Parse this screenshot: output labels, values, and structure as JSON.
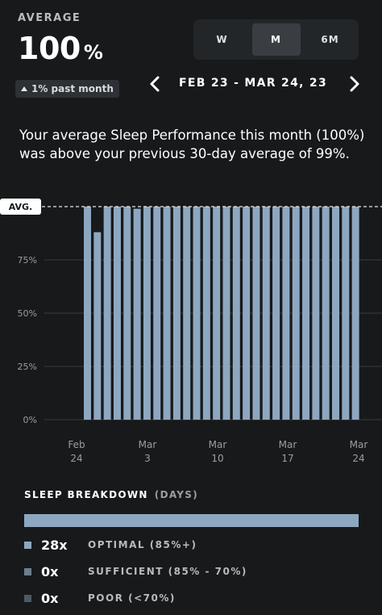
{
  "header": {
    "average_label": "AVERAGE",
    "average_value": "100",
    "average_unit": "%",
    "trend_text": "1% past month"
  },
  "range_selector": {
    "options": [
      "W",
      "M",
      "6M"
    ],
    "selected": "M"
  },
  "date_nav": {
    "range_label": "FEB 23 - MAR 24, 23",
    "prev_icon": "chevron-left-icon",
    "next_icon": "chevron-right-icon"
  },
  "summary_text": "Your average Sleep Performance this month (100%) was above your previous 30-day average of 99%.",
  "chart_data": {
    "type": "bar",
    "avg_label": "AVG.",
    "avg_value": 100,
    "ylim": [
      0,
      100
    ],
    "y_ticks": [
      "0%",
      "25%",
      "50%",
      "75%"
    ],
    "x_ticks": [
      {
        "month": "Feb",
        "day": "24"
      },
      {
        "month": "Mar",
        "day": "3"
      },
      {
        "month": "Mar",
        "day": "10"
      },
      {
        "month": "Mar",
        "day": "17"
      },
      {
        "month": "Mar",
        "day": "24"
      }
    ],
    "values": [
      100,
      88,
      100,
      100,
      100,
      99,
      100,
      100,
      100,
      100,
      100,
      100,
      100,
      100,
      100,
      100,
      100,
      100,
      100,
      100,
      100,
      100,
      100,
      100,
      100,
      100,
      100,
      100
    ],
    "colors": {
      "bar": "#8ea7c0",
      "grid": "#3a3d40",
      "tick": "#9a9ea3"
    }
  },
  "breakdown": {
    "title": "SLEEP BREAKDOWN",
    "subtitle": "(DAYS)",
    "rows": [
      {
        "count": "28x",
        "label": "OPTIMAL (85%+)",
        "color": "#8ea7c0"
      },
      {
        "count": "0x",
        "label": "SUFFICIENT (85% - 70%)",
        "color": "#6f7e8d"
      },
      {
        "count": "0x",
        "label": "POOR (<70%)",
        "color": "#4f5964"
      }
    ]
  }
}
